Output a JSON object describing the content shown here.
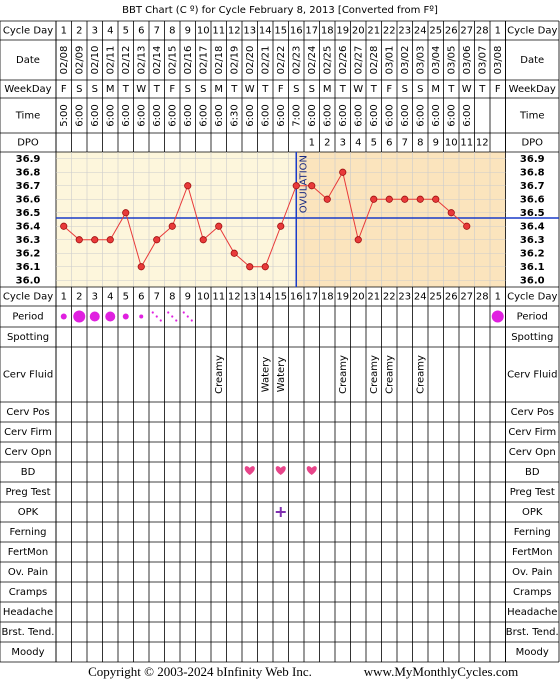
{
  "chart_data": {
    "type": "line",
    "title": "BBT Chart (C º) for Cycle February 8, 2013  [Converted from Fº]",
    "row_labels": [
      "Cycle Day",
      "Date",
      "WeekDay",
      "Time",
      "DPO",
      "Cycle Day",
      "Period",
      "Spotting",
      "Cerv Fluid",
      "Cerv Pos",
      "Cerv Firm",
      "Cerv Opn",
      "BD",
      "Preg Test",
      "OPK",
      "Ferning",
      "FertMon",
      "Ov. Pain",
      "Cramps",
      "Headache",
      "Brst. Tend.",
      "Moody"
    ],
    "categories": [
      1,
      2,
      3,
      4,
      5,
      6,
      7,
      8,
      9,
      10,
      11,
      12,
      13,
      14,
      15,
      16,
      17,
      18,
      19,
      20,
      21,
      22,
      23,
      24,
      25,
      26,
      27,
      28,
      1
    ],
    "dates": [
      "02/08",
      "02/09",
      "02/10",
      "02/11",
      "02/12",
      "02/13",
      "02/14",
      "02/15",
      "02/16",
      "02/17",
      "02/18",
      "02/19",
      "02/20",
      "02/21",
      "02/22",
      "02/23",
      "02/24",
      "02/25",
      "02/26",
      "02/27",
      "02/28",
      "03/01",
      "03/02",
      "03/03",
      "03/04",
      "03/05",
      "03/06",
      "03/07",
      "03/08"
    ],
    "weekdays": [
      "F",
      "S",
      "S",
      "M",
      "T",
      "W",
      "T",
      "F",
      "S",
      "S",
      "M",
      "T",
      "W",
      "T",
      "F",
      "S",
      "S",
      "M",
      "T",
      "W",
      "T",
      "F",
      "S",
      "S",
      "M",
      "T",
      "W",
      "T",
      "F"
    ],
    "times": [
      "5:00",
      "6:00",
      "6:00",
      "6:00",
      "6:00",
      "6:00",
      "6:00",
      "6:00",
      "6:00",
      "6:00",
      "6:00",
      "6:30",
      "6:00",
      "6:00",
      "6:00",
      "7:00",
      "6:00",
      "6:00",
      "6:00",
      "6:00",
      "6:00",
      "6:00",
      "6:00",
      "6:00",
      "6:00",
      "6:00",
      "6:00",
      null,
      null
    ],
    "dpo": [
      null,
      null,
      null,
      null,
      null,
      null,
      null,
      null,
      null,
      null,
      null,
      null,
      null,
      null,
      null,
      null,
      1,
      2,
      3,
      4,
      5,
      6,
      7,
      8,
      9,
      10,
      11,
      12,
      null
    ],
    "cerv_fluid": [
      null,
      null,
      null,
      null,
      null,
      null,
      null,
      null,
      null,
      null,
      "Creamy",
      null,
      null,
      "Watery",
      "Watery",
      null,
      null,
      null,
      "Creamy",
      null,
      "Creamy",
      "Creamy",
      null,
      "Creamy",
      null,
      null,
      null,
      null,
      null
    ],
    "ovulation_label": "OVULATION",
    "series": [
      {
        "name": "BBT",
        "color": "#e83a3a",
        "values": [
          36.4,
          36.3,
          36.3,
          36.3,
          36.5,
          36.1,
          36.3,
          36.4,
          36.7,
          36.3,
          36.4,
          36.2,
          36.1,
          36.1,
          36.4,
          36.7,
          36.7,
          36.6,
          36.8,
          36.3,
          36.6,
          36.6,
          36.6,
          36.6,
          36.6,
          36.5,
          36.4,
          null,
          null
        ]
      }
    ],
    "ylim": [
      35.95,
      36.95
    ],
    "yticks": [
      36.9,
      36.8,
      36.7,
      36.6,
      36.5,
      36.4,
      36.3,
      36.2,
      36.1,
      {
        "value": 36.0,
        "label": "36.0"
      }
    ],
    "grid": true,
    "footer": [
      "Copyright © 2003-2024 bInfinity Web Inc.",
      "www.MyMonthlyCycles.com"
    ]
  }
}
